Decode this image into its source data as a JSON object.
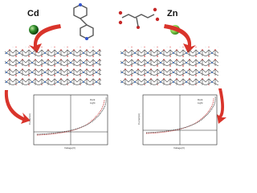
{
  "metals": [
    {
      "label": "Cd"
    },
    {
      "label": "Zn"
    }
  ],
  "plots": [
    {
      "legend": [
        "Dark",
        "Light"
      ],
      "x_label": "Voltage(V)",
      "y_label": "Current(A)"
    },
    {
      "legend": [
        "Dark",
        "Light"
      ],
      "x_label": "Voltage(V)",
      "y_label": "Current(A)"
    }
  ]
}
